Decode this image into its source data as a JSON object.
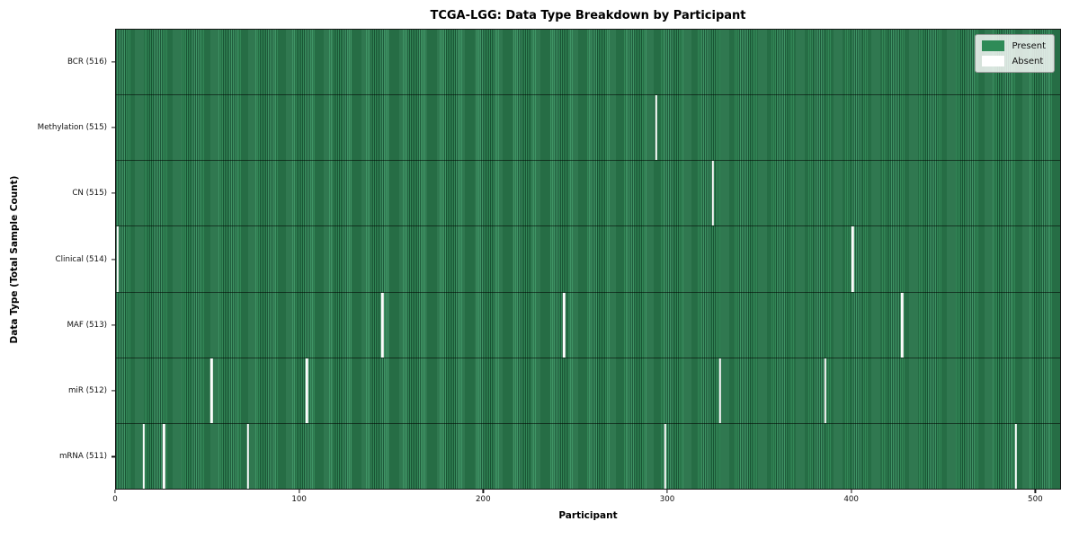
{
  "chart_data": {
    "type": "heatmap",
    "title": "TCGA-LGG: Data Type Breakdown by Participant",
    "xlabel": "Participant",
    "ylabel": "Data Type (Total Sample Count)",
    "x_ticks": [
      0,
      100,
      200,
      300,
      400,
      500
    ],
    "xlim": [
      0,
      514
    ],
    "grid": false,
    "rows": [
      {
        "label": "BCR",
        "total": 516,
        "display": "BCR (516)",
        "absent_participants": []
      },
      {
        "label": "Methylation",
        "total": 515,
        "display": "Methylation (515)",
        "absent_participants": [
          294
        ]
      },
      {
        "label": "CN",
        "total": 515,
        "display": "CN (515)",
        "absent_participants": [
          325
        ]
      },
      {
        "label": "Clinical",
        "total": 514,
        "display": "Clinical (514)",
        "absent_participants": [
          1,
          401
        ]
      },
      {
        "label": "MAF",
        "total": 513,
        "display": "MAF (513)",
        "absent_participants": [
          145,
          244,
          428
        ]
      },
      {
        "label": "miR",
        "total": 512,
        "display": "miR (512)",
        "absent_participants": [
          52,
          104,
          329,
          386
        ]
      },
      {
        "label": "mRNA",
        "total": 511,
        "display": "mRNA (511)",
        "absent_participants": [
          15,
          26,
          72,
          299,
          490
        ]
      }
    ],
    "legend": {
      "position": "upper right",
      "entries": [
        {
          "label": "Present",
          "color": "#2e8b57"
        },
        {
          "label": "Absent",
          "color": "#ffffff"
        }
      ]
    },
    "colors": {
      "present": "#2e8b57",
      "absent": "#ffffff",
      "text": "#000000",
      "background": "#ffffff"
    }
  }
}
